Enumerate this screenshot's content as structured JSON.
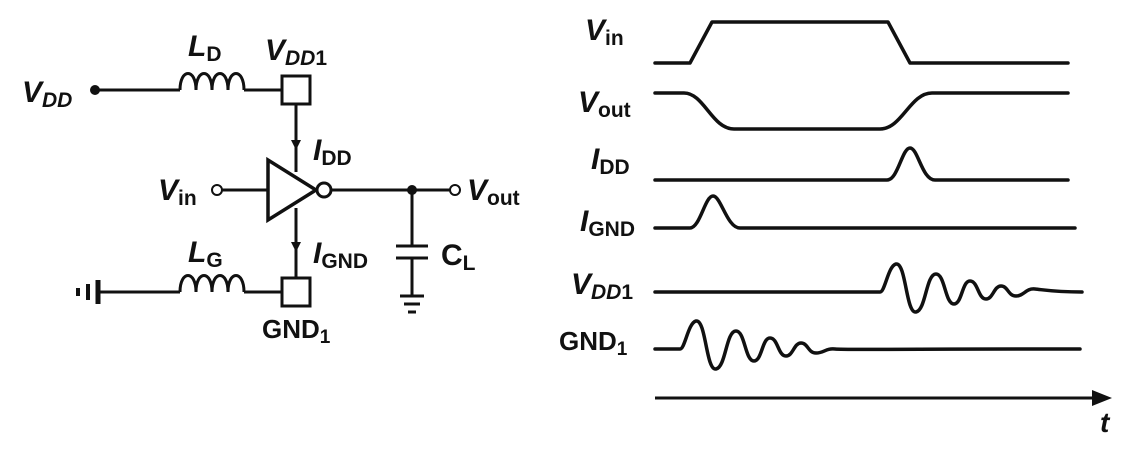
{
  "schematic": {
    "vdd": {
      "main": "V",
      "sub": "DD"
    },
    "ld": {
      "main": "L",
      "sub": "D"
    },
    "vdd1": {
      "main": "V",
      "sub": "DD",
      "suffix": "1"
    },
    "idd": {
      "main": "I",
      "sub": "DD"
    },
    "vin": {
      "main": "V",
      "sub": "in"
    },
    "vout": {
      "main": "V",
      "sub": "out"
    },
    "ignd": {
      "main": "I",
      "sub": "GND"
    },
    "lg": {
      "main": "L",
      "sub": "G"
    },
    "cl": {
      "main": "C",
      "sub": "L"
    },
    "gnd1": {
      "main": "GND",
      "sub": "1"
    }
  },
  "waveforms": {
    "vin": {
      "main": "V",
      "sub": "in"
    },
    "vout": {
      "main": "V",
      "sub": "out"
    },
    "idd": {
      "main": "I",
      "sub": "DD"
    },
    "ignd": {
      "main": "I",
      "sub": "GND"
    },
    "vdd1": {
      "main": "V",
      "sub": "DD",
      "suffix": "1"
    },
    "gnd1": {
      "main": "GND",
      "sub": "1"
    }
  },
  "time_axis": {
    "label": "t"
  }
}
